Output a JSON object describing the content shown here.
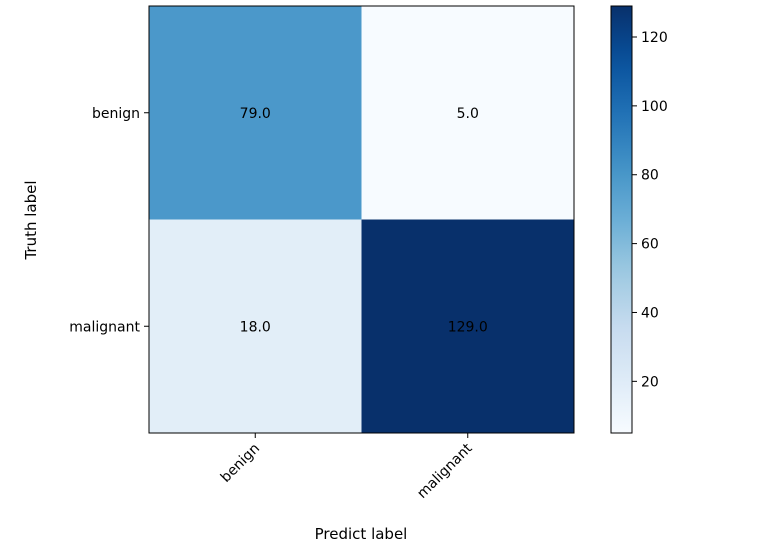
{
  "chart_data": {
    "type": "heatmap",
    "title": "",
    "xlabel": "Predict label",
    "ylabel": "Truth label",
    "x_categories": [
      "benign",
      "malignant"
    ],
    "y_categories": [
      "benign",
      "malignant"
    ],
    "values": [
      [
        79.0,
        5.0
      ],
      [
        18.0,
        129.0
      ]
    ],
    "cell_labels": [
      [
        "79.0",
        "5.0"
      ],
      [
        "18.0",
        "129.0"
      ]
    ],
    "colormap": "Blues",
    "color_range": [
      5,
      129
    ],
    "colorbar_ticks": [
      "20",
      "40",
      "60",
      "80",
      "100",
      "120"
    ],
    "colorbar_tick_values": [
      20,
      40,
      60,
      80,
      100,
      120
    ],
    "grid": false
  }
}
